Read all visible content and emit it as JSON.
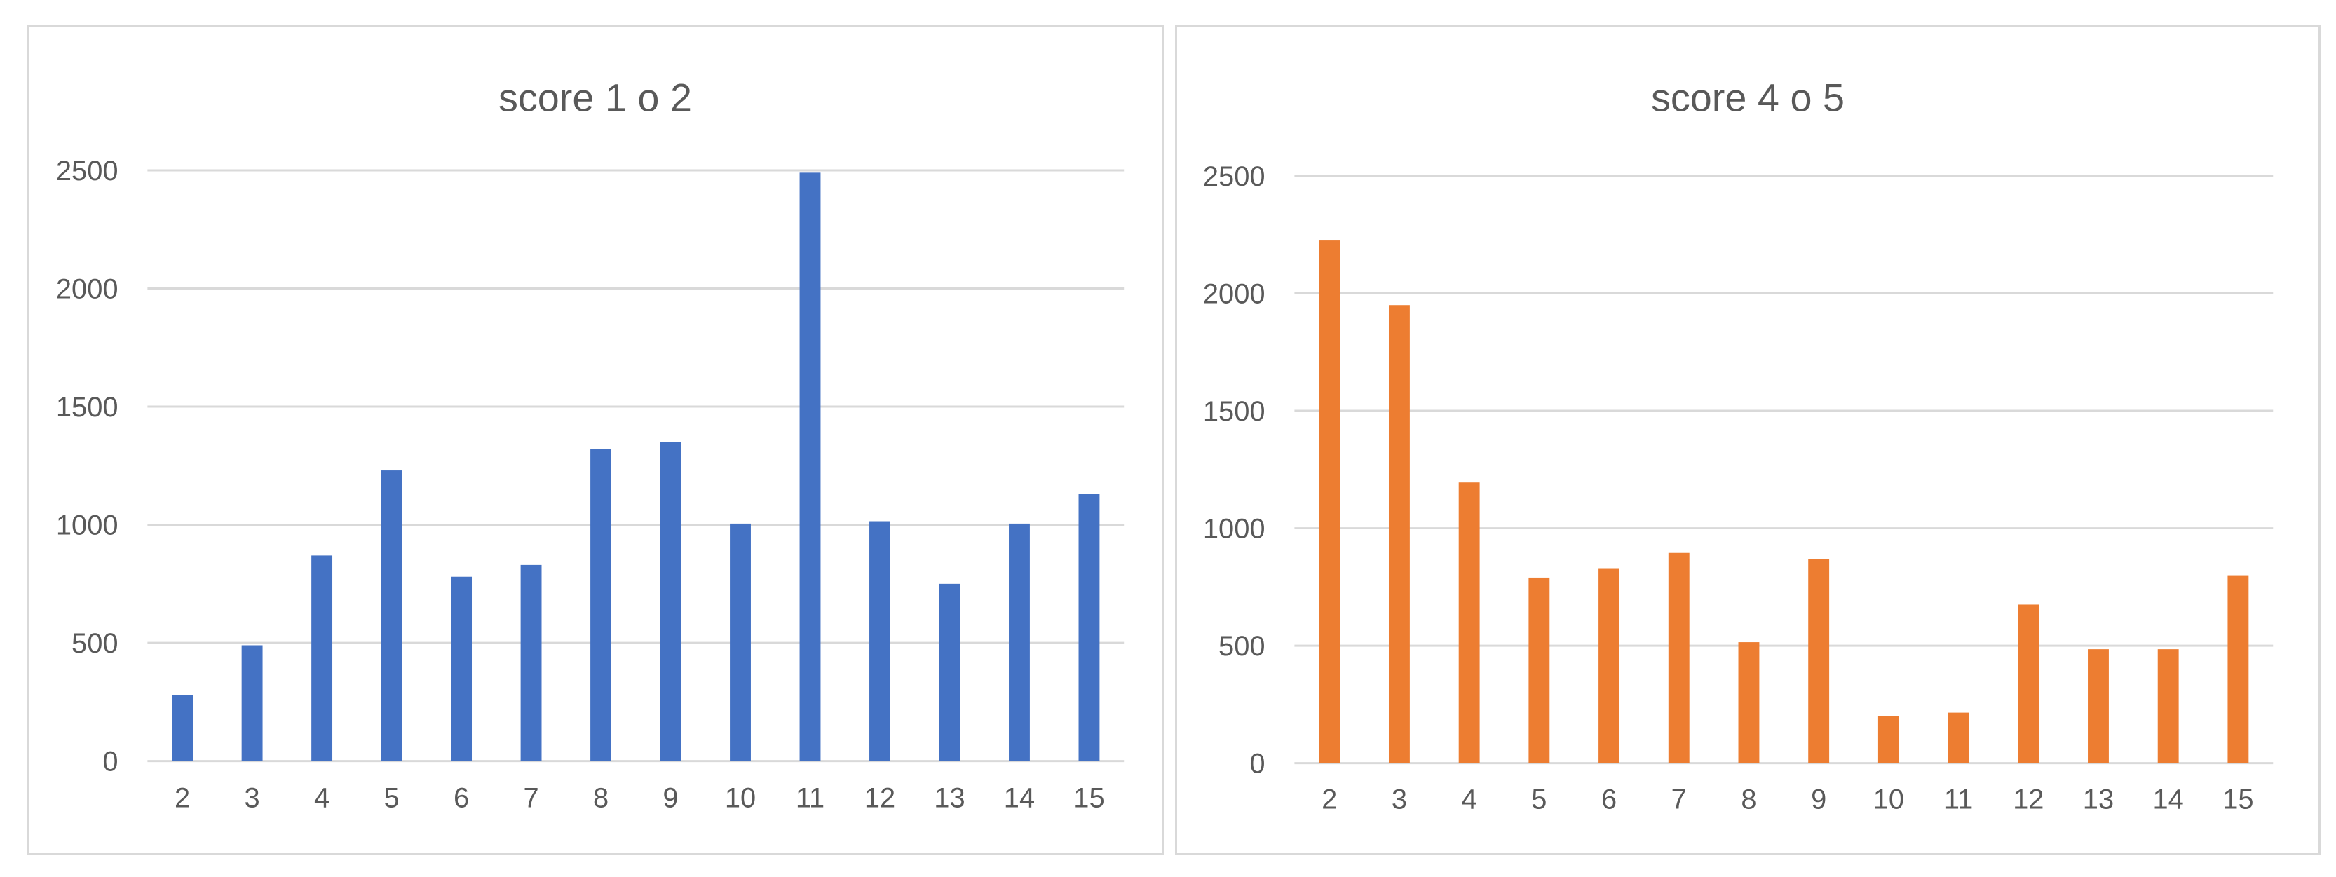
{
  "chart_data": [
    {
      "type": "bar",
      "title": "score 1 o 2",
      "categories": [
        "2",
        "3",
        "4",
        "5",
        "6",
        "7",
        "8",
        "9",
        "10",
        "11",
        "12",
        "13",
        "14",
        "15"
      ],
      "series": [
        {
          "values": [
            280,
            490,
            870,
            1230,
            780,
            830,
            1320,
            1350,
            1005,
            2490,
            1015,
            750,
            1005,
            1130
          ]
        }
      ],
      "ylim": [
        0,
        2500
      ],
      "yticks": [
        0,
        500,
        1000,
        1500,
        2000,
        2500
      ],
      "grid": true,
      "legend": "none",
      "color": "#4472c4"
    },
    {
      "type": "bar",
      "title": "score 4 o 5",
      "categories": [
        "2",
        "3",
        "4",
        "5",
        "6",
        "7",
        "8",
        "9",
        "10",
        "11",
        "12",
        "13",
        "14",
        "15"
      ],
      "series": [
        {
          "values": [
            2225,
            1950,
            1195,
            790,
            830,
            895,
            515,
            870,
            200,
            215,
            675,
            485,
            485,
            800
          ]
        }
      ],
      "ylim": [
        0,
        2500
      ],
      "yticks": [
        0,
        500,
        1000,
        1500,
        2000,
        2500
      ],
      "grid": true,
      "legend": "none",
      "color": "#ed7d31"
    }
  ]
}
